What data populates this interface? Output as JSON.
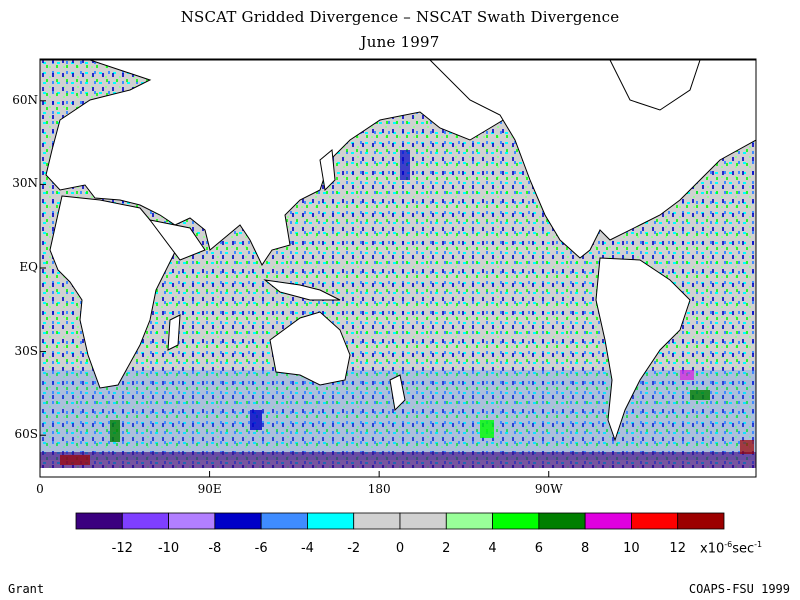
{
  "title": "NSCAT Gridded Divergence – NSCAT Swath Divergence",
  "subtitle": "June 1997",
  "map": {
    "land_color": "#ffffff",
    "coast_color": "#000000",
    "lat_ticks": [
      "60N",
      "30N",
      "EQ",
      "30S",
      "60S"
    ],
    "lon_ticks": [
      "0",
      "90E",
      "180",
      "90W"
    ],
    "lat_values": [
      60,
      30,
      0,
      -30,
      -60
    ],
    "lon_values": [
      0,
      90,
      180,
      270
    ],
    "lat_range": [
      -75,
      75
    ],
    "lon_range": [
      0,
      380
    ]
  },
  "colorbar": {
    "colors": [
      "#3b007f",
      "#7f3fff",
      "#b27fff",
      "#0000c8",
      "#3f8cff",
      "#00ffff",
      "#d1d1d1",
      "#d1d1d1",
      "#99ff99",
      "#00ff00",
      "#007f00",
      "#e000e0",
      "#ff0000",
      "#9c0000"
    ],
    "tick_labels": [
      "-12",
      "-10",
      "-8",
      "-6",
      "-4",
      "-2",
      "0",
      "2",
      "4",
      "6",
      "8",
      "10",
      "12"
    ],
    "unit_prefix": "x10",
    "unit_exp": "-6",
    "unit_suffix": "sec",
    "unit_suffix_exp": "-1"
  },
  "footer": {
    "left": "Grant",
    "right": "COAPS-FSU 1999"
  }
}
